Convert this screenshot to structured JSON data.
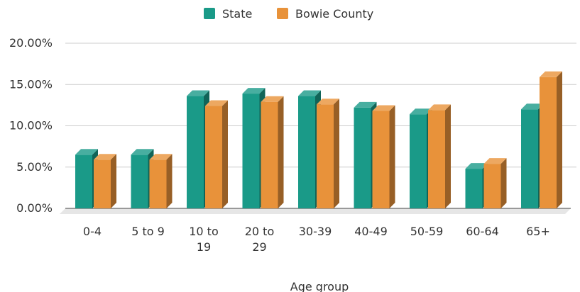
{
  "chart_data": {
    "type": "bar",
    "title": "",
    "xlabel": "Age group",
    "ylabel": "",
    "ylim": [
      0,
      20
    ],
    "yticks": [
      0,
      5,
      10,
      15,
      20
    ],
    "ytick_labels": [
      "0.00%",
      "5.00%",
      "10.00%",
      "15.00%",
      "20.00%"
    ],
    "categories": [
      "0-4",
      "5 to 9",
      "10 to 19",
      "20 to 29",
      "30-39",
      "40-49",
      "50-59",
      "60-64",
      "65+"
    ],
    "category_lines": [
      [
        "0-4"
      ],
      [
        "5 to 9"
      ],
      [
        "10 to",
        "19"
      ],
      [
        "20 to",
        "29"
      ],
      [
        "30-39"
      ],
      [
        "40-49"
      ],
      [
        "50-59"
      ],
      [
        "60-64"
      ],
      [
        "65+"
      ]
    ],
    "series": [
      {
        "name": "State",
        "color": "#1a9a88",
        "values": [
          6.5,
          6.5,
          13.6,
          13.9,
          13.6,
          12.2,
          11.4,
          4.8,
          12.0
        ]
      },
      {
        "name": "Bowie County",
        "color": "#e8923a",
        "values": [
          5.9,
          5.9,
          12.4,
          12.9,
          12.6,
          11.8,
          11.9,
          5.4,
          15.9
        ]
      }
    ],
    "legend_position": "top-center",
    "grid": true
  }
}
